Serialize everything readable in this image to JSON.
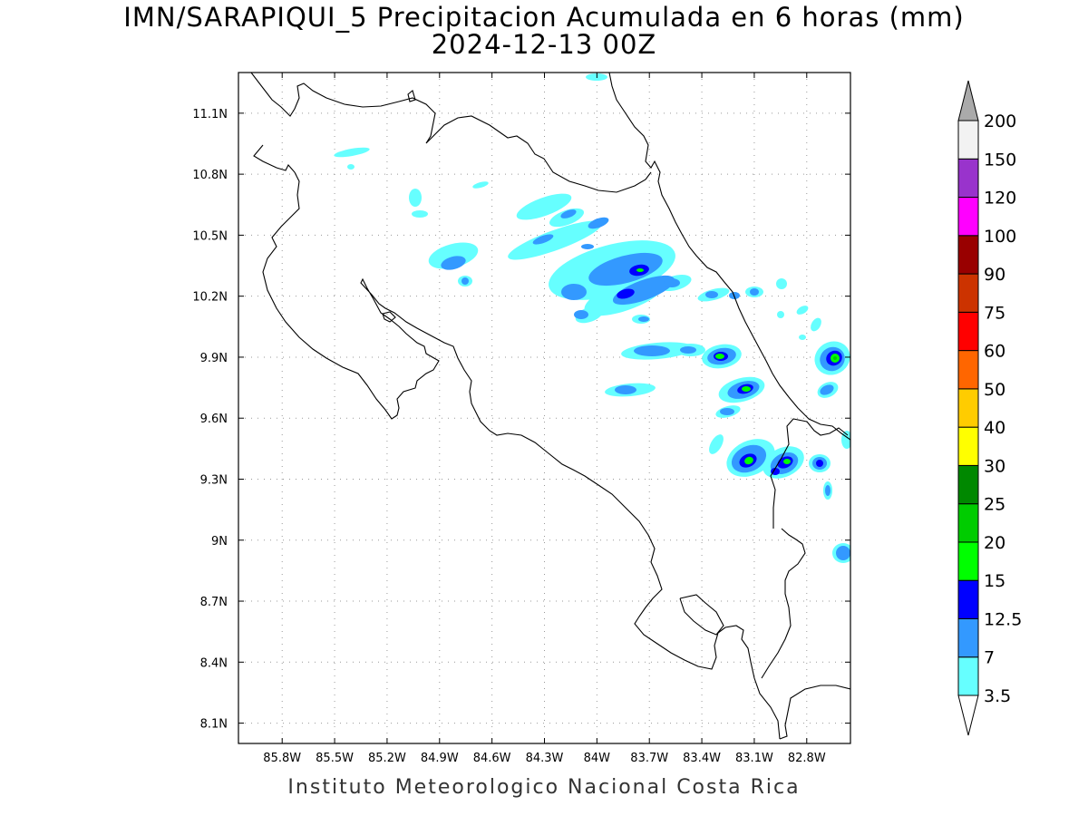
{
  "title": {
    "line1": "IMN/SARAPIQUI_5 Precipitacion Acumulada en 6 horas (mm)",
    "line2": "2024-12-13 00Z"
  },
  "footer": "Instituto Meteorologico Nacional Costa Rica",
  "map": {
    "lon_range": [
      -86.05,
      -82.55
    ],
    "lat_range": [
      8.0,
      11.3
    ],
    "x_ticks": [
      {
        "lon": -85.8,
        "label": "85.8W"
      },
      {
        "lon": -85.5,
        "label": "85.5W"
      },
      {
        "lon": -85.2,
        "label": "85.2W"
      },
      {
        "lon": -84.9,
        "label": "84.9W"
      },
      {
        "lon": -84.6,
        "label": "84.6W"
      },
      {
        "lon": -84.3,
        "label": "84.3W"
      },
      {
        "lon": -84.0,
        "label": "84W"
      },
      {
        "lon": -83.7,
        "label": "83.7W"
      },
      {
        "lon": -83.4,
        "label": "83.4W"
      },
      {
        "lon": -83.1,
        "label": "83.1W"
      },
      {
        "lon": -82.8,
        "label": "82.8W"
      }
    ],
    "y_ticks": [
      {
        "lat": 8.1,
        "label": "8.1N"
      },
      {
        "lat": 8.4,
        "label": "8.4N"
      },
      {
        "lat": 8.7,
        "label": "8.7N"
      },
      {
        "lat": 9.0,
        "label": "9N"
      },
      {
        "lat": 9.3,
        "label": "9.3N"
      },
      {
        "lat": 9.6,
        "label": "9.6N"
      },
      {
        "lat": 9.9,
        "label": "9.9N"
      },
      {
        "lat": 10.2,
        "label": "10.2N"
      },
      {
        "lat": 10.5,
        "label": "10.5N"
      },
      {
        "lat": 10.8,
        "label": "10.8N"
      },
      {
        "lat": 11.1,
        "label": "11.1N"
      }
    ],
    "grid": true
  },
  "colorbar": {
    "levels": [
      "3.5",
      "7",
      "12.5",
      "15",
      "20",
      "25",
      "30",
      "40",
      "50",
      "60",
      "75",
      "90",
      "100",
      "120",
      "150",
      "200"
    ],
    "colors": [
      "#66ffff",
      "#3399ff",
      "#0000ff",
      "#00ff00",
      "#00cc00",
      "#008800",
      "#ffff00",
      "#ffcc00",
      "#ff6600",
      "#ff0000",
      "#cc3300",
      "#990000",
      "#ff00ff",
      "#9933cc",
      "#f2f2f2"
    ],
    "min_arrow_color": "#ffffff",
    "max_arrow_color": "#aaaaaa"
  }
}
